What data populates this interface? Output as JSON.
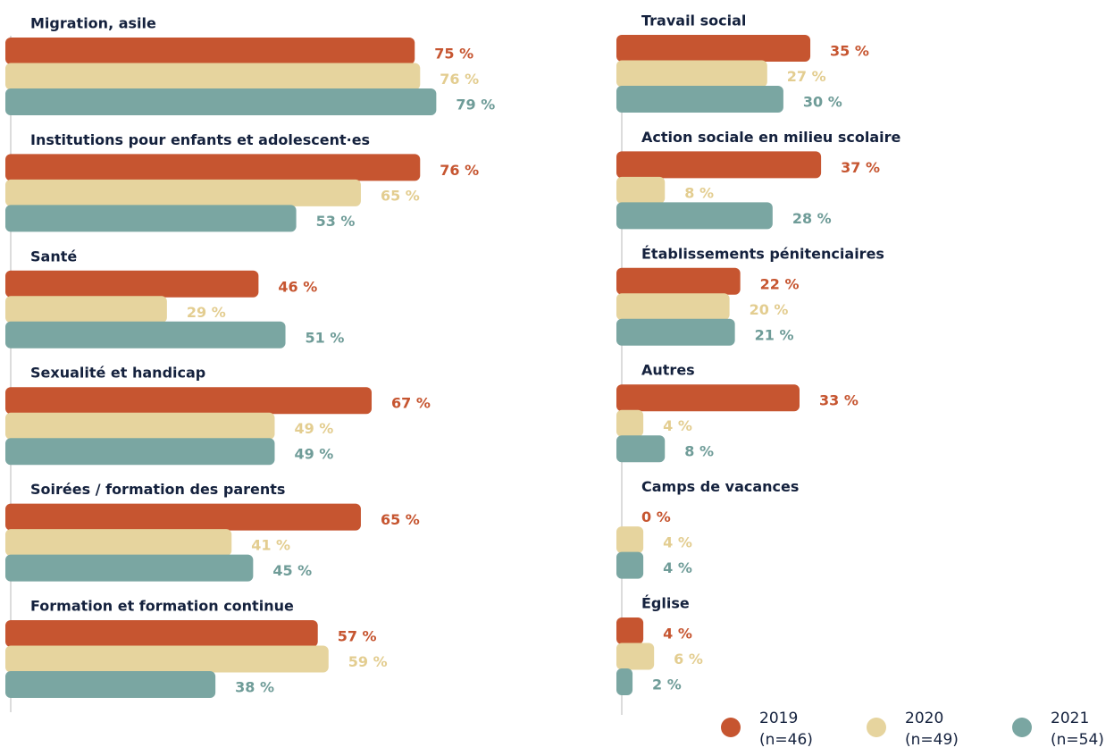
{
  "chart_data": {
    "type": "bar",
    "orientation": "horizontal",
    "categories": [
      "Migration, asile",
      "Institutions pour enfants et adolescent·es",
      "Santé",
      "Sexualité et handicap",
      "Soirées / formation des parents",
      "Formation et formation continue",
      "Travail social",
      "Action sociale en milieu scolaire",
      "Établissements pénitenciaires",
      "Autres",
      "Camps de vacances",
      "Église"
    ],
    "xlim": [
      0,
      100
    ],
    "series": [
      {
        "name": "2019",
        "sample": "(n=46)",
        "color": "#c65530",
        "label_color": "#c65530",
        "values": [
          75,
          76,
          46,
          67,
          65,
          57,
          35,
          37,
          22,
          33,
          0,
          4
        ],
        "value_labels": [
          "75 %",
          "76 %",
          "46 %",
          "67 %",
          "65 %",
          "57 %",
          "35 %",
          "37 %",
          "22 %",
          "33 %",
          "0 %",
          "4 %"
        ]
      },
      {
        "name": "2020",
        "sample": "(n=49)",
        "color": "#e6d49e",
        "label_color": "#e3cd90",
        "values": [
          76,
          65,
          29,
          49,
          41,
          59,
          27,
          8,
          20,
          4,
          4,
          6
        ],
        "value_labels": [
          "76 %",
          "65 %",
          "29 %",
          "49 %",
          "41 %",
          "59 %",
          "27 %",
          "8 %",
          "20 %",
          "4 %",
          "4 %",
          "6 %"
        ]
      },
      {
        "name": "2021",
        "sample": "(n=54)",
        "color": "#7aa6a2",
        "label_color": "#6f9c98",
        "values": [
          79,
          53,
          51,
          49,
          45,
          38,
          30,
          28,
          21,
          8,
          4,
          2
        ],
        "value_labels": [
          "79 %",
          "53 %",
          "51 %",
          "49 %",
          "45 %",
          "38 %",
          "30 %",
          "28 %",
          "21 %",
          "8 %",
          "4 %",
          "2 %"
        ]
      }
    ]
  }
}
